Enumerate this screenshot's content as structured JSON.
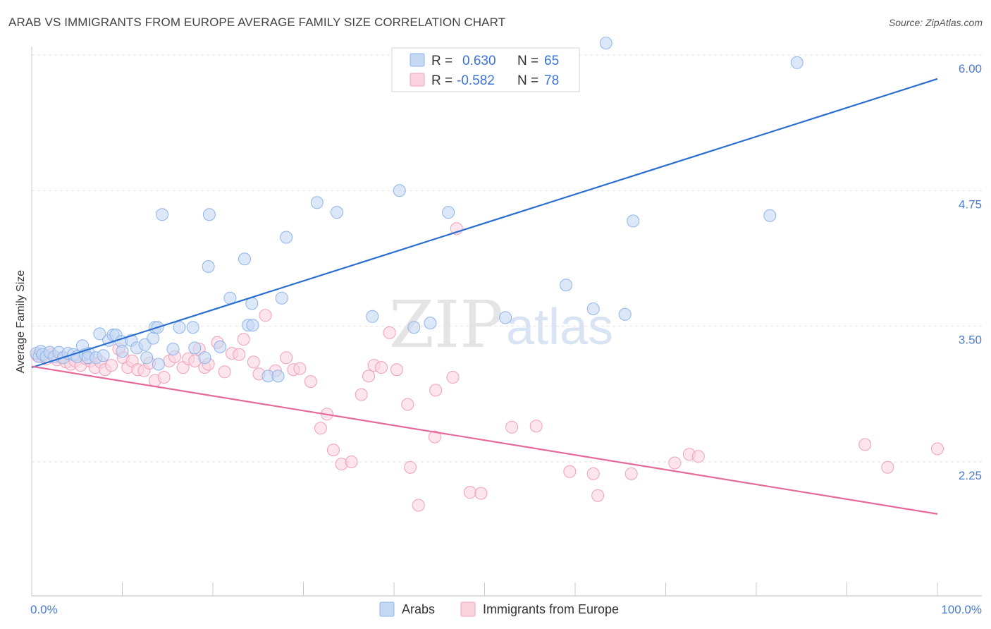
{
  "header": {
    "title": "ARAB VS IMMIGRANTS FROM EUROPE AVERAGE FAMILY SIZE CORRELATION CHART",
    "source": "Source: ZipAtlas.com"
  },
  "watermark": {
    "zip": "ZIP",
    "atlas": "atlas"
  },
  "legend": {
    "rows": [
      {
        "r_label": "R = ",
        "r_value": "0.630",
        "n_label": "N = ",
        "n_value": "65",
        "color": "#8fb3ea"
      },
      {
        "r_label": "R = ",
        "r_value": "-0.582",
        "n_label": "N = ",
        "n_value": "78",
        "color": "#f4a8c0"
      }
    ]
  },
  "colors": {
    "arabs_fill": "#c5d8f4",
    "arabs_stroke": "#8fb3ea",
    "arabs_line": "#2a6fd0",
    "europe_fill": "#fad3df",
    "europe_stroke": "#f0a0b8",
    "europe_line": "#e5699a"
  },
  "chart_data": {
    "type": "scatter",
    "title": "ARAB VS IMMIGRANTS FROM EUROPE AVERAGE FAMILY SIZE CORRELATION CHART",
    "xlabel": "",
    "ylabel": "Average Family Size",
    "xlim": [
      0,
      100
    ],
    "ylim": [
      1.0,
      6.2
    ],
    "x_tick_labels": [
      "0.0%",
      "100.0%"
    ],
    "y_ticks": [
      2.25,
      3.5,
      4.75,
      6.0
    ],
    "y_tick_labels": [
      "2.25",
      "3.50",
      "4.75",
      "6.00"
    ],
    "series": [
      {
        "name": "Arabs",
        "R": 0.63,
        "N": 65,
        "trend": {
          "x": [
            0,
            100
          ],
          "y": [
            3.12,
            5.78
          ]
        },
        "points": [
          [
            0.5,
            3.25
          ],
          [
            0.8,
            3.22
          ],
          [
            1.0,
            3.27
          ],
          [
            1.2,
            3.24
          ],
          [
            1.6,
            3.22
          ],
          [
            2.0,
            3.26
          ],
          [
            2.5,
            3.22
          ],
          [
            3.0,
            3.26
          ],
          [
            3.5,
            3.21
          ],
          [
            4.0,
            3.25
          ],
          [
            4.6,
            3.24
          ],
          [
            5.0,
            3.22
          ],
          [
            5.6,
            3.32
          ],
          [
            5.9,
            3.24
          ],
          [
            6.3,
            3.25
          ],
          [
            6.2,
            3.21
          ],
          [
            7.1,
            3.21
          ],
          [
            7.5,
            3.43
          ],
          [
            7.9,
            3.23
          ],
          [
            8.5,
            3.37
          ],
          [
            9.0,
            3.42
          ],
          [
            9.3,
            3.42
          ],
          [
            9.9,
            3.36
          ],
          [
            10.0,
            3.27
          ],
          [
            11.0,
            3.37
          ],
          [
            11.6,
            3.3
          ],
          [
            12.5,
            3.33
          ],
          [
            12.7,
            3.21
          ],
          [
            13.4,
            3.39
          ],
          [
            13.6,
            3.49
          ],
          [
            13.9,
            3.49
          ],
          [
            14.0,
            3.15
          ],
          [
            14.4,
            4.53
          ],
          [
            15.6,
            3.29
          ],
          [
            16.3,
            3.49
          ],
          [
            17.8,
            3.49
          ],
          [
            18.0,
            3.3
          ],
          [
            19.1,
            3.21
          ],
          [
            20.8,
            3.31
          ],
          [
            19.5,
            4.05
          ],
          [
            19.6,
            4.53
          ],
          [
            21.9,
            3.76
          ],
          [
            23.5,
            4.12
          ],
          [
            23.9,
            3.51
          ],
          [
            24.3,
            3.71
          ],
          [
            24.4,
            3.51
          ],
          [
            26.1,
            3.04
          ],
          [
            27.2,
            3.04
          ],
          [
            28.1,
            4.32
          ],
          [
            27.6,
            3.76
          ],
          [
            31.5,
            4.64
          ],
          [
            33.7,
            4.55
          ],
          [
            37.6,
            3.59
          ],
          [
            40.6,
            4.75
          ],
          [
            42.2,
            3.49
          ],
          [
            44.0,
            3.53
          ],
          [
            46.0,
            4.55
          ],
          [
            52.3,
            3.58
          ],
          [
            59.0,
            3.88
          ],
          [
            62.0,
            3.66
          ],
          [
            65.5,
            3.61
          ],
          [
            66.4,
            4.47
          ],
          [
            81.5,
            4.52
          ],
          [
            84.5,
            5.93
          ],
          [
            63.4,
            6.11
          ]
        ]
      },
      {
        "name": "Immigrants from Europe",
        "R": -0.582,
        "N": 78,
        "trend": {
          "x": [
            0,
            100
          ],
          "y": [
            3.13,
            1.77
          ]
        },
        "points": [
          [
            0.6,
            3.23
          ],
          [
            1.1,
            3.22
          ],
          [
            1.6,
            3.2
          ],
          [
            2.2,
            3.24
          ],
          [
            2.8,
            3.19
          ],
          [
            3.3,
            3.21
          ],
          [
            3.8,
            3.17
          ],
          [
            4.3,
            3.15
          ],
          [
            4.8,
            3.18
          ],
          [
            5.4,
            3.14
          ],
          [
            6.0,
            3.2
          ],
          [
            6.5,
            3.18
          ],
          [
            7.0,
            3.12
          ],
          [
            7.6,
            3.17
          ],
          [
            8.1,
            3.1
          ],
          [
            8.8,
            3.14
          ],
          [
            9.6,
            3.29
          ],
          [
            10.1,
            3.21
          ],
          [
            10.6,
            3.12
          ],
          [
            11.1,
            3.18
          ],
          [
            11.7,
            3.1
          ],
          [
            12.4,
            3.09
          ],
          [
            13.0,
            3.16
          ],
          [
            13.6,
            3.0
          ],
          [
            14.6,
            3.03
          ],
          [
            15.2,
            3.18
          ],
          [
            15.8,
            3.22
          ],
          [
            16.7,
            3.12
          ],
          [
            17.3,
            3.2
          ],
          [
            18.0,
            3.18
          ],
          [
            18.5,
            3.29
          ],
          [
            19.1,
            3.12
          ],
          [
            19.5,
            3.15
          ],
          [
            20.5,
            3.35
          ],
          [
            21.3,
            3.08
          ],
          [
            22.1,
            3.25
          ],
          [
            22.9,
            3.24
          ],
          [
            23.4,
            3.38
          ],
          [
            24.5,
            3.17
          ],
          [
            25.1,
            3.06
          ],
          [
            25.8,
            3.6
          ],
          [
            26.9,
            3.09
          ],
          [
            28.1,
            3.21
          ],
          [
            28.9,
            3.1
          ],
          [
            29.6,
            3.11
          ],
          [
            30.8,
            2.99
          ],
          [
            31.9,
            2.56
          ],
          [
            32.6,
            2.69
          ],
          [
            33.3,
            2.36
          ],
          [
            34.2,
            2.23
          ],
          [
            35.3,
            2.25
          ],
          [
            36.4,
            2.87
          ],
          [
            37.2,
            3.04
          ],
          [
            37.8,
            3.14
          ],
          [
            38.6,
            3.12
          ],
          [
            39.5,
            3.44
          ],
          [
            40.3,
            3.1
          ],
          [
            41.5,
            2.78
          ],
          [
            41.8,
            2.2
          ],
          [
            42.7,
            1.85
          ],
          [
            44.5,
            2.48
          ],
          [
            44.6,
            2.91
          ],
          [
            46.5,
            3.03
          ],
          [
            46.9,
            4.4
          ],
          [
            48.4,
            1.97
          ],
          [
            49.6,
            1.96
          ],
          [
            53.0,
            2.57
          ],
          [
            55.7,
            2.58
          ],
          [
            59.4,
            2.16
          ],
          [
            62.0,
            2.14
          ],
          [
            62.5,
            1.94
          ],
          [
            66.2,
            2.14
          ],
          [
            71.0,
            2.24
          ],
          [
            72.6,
            2.32
          ],
          [
            73.6,
            2.3
          ],
          [
            92.0,
            2.41
          ],
          [
            94.5,
            2.2
          ],
          [
            100.0,
            2.37
          ]
        ]
      }
    ],
    "legend_position": "top-center"
  },
  "bottom_legend": {
    "items": [
      "Arabs",
      "Immigrants from Europe"
    ]
  }
}
